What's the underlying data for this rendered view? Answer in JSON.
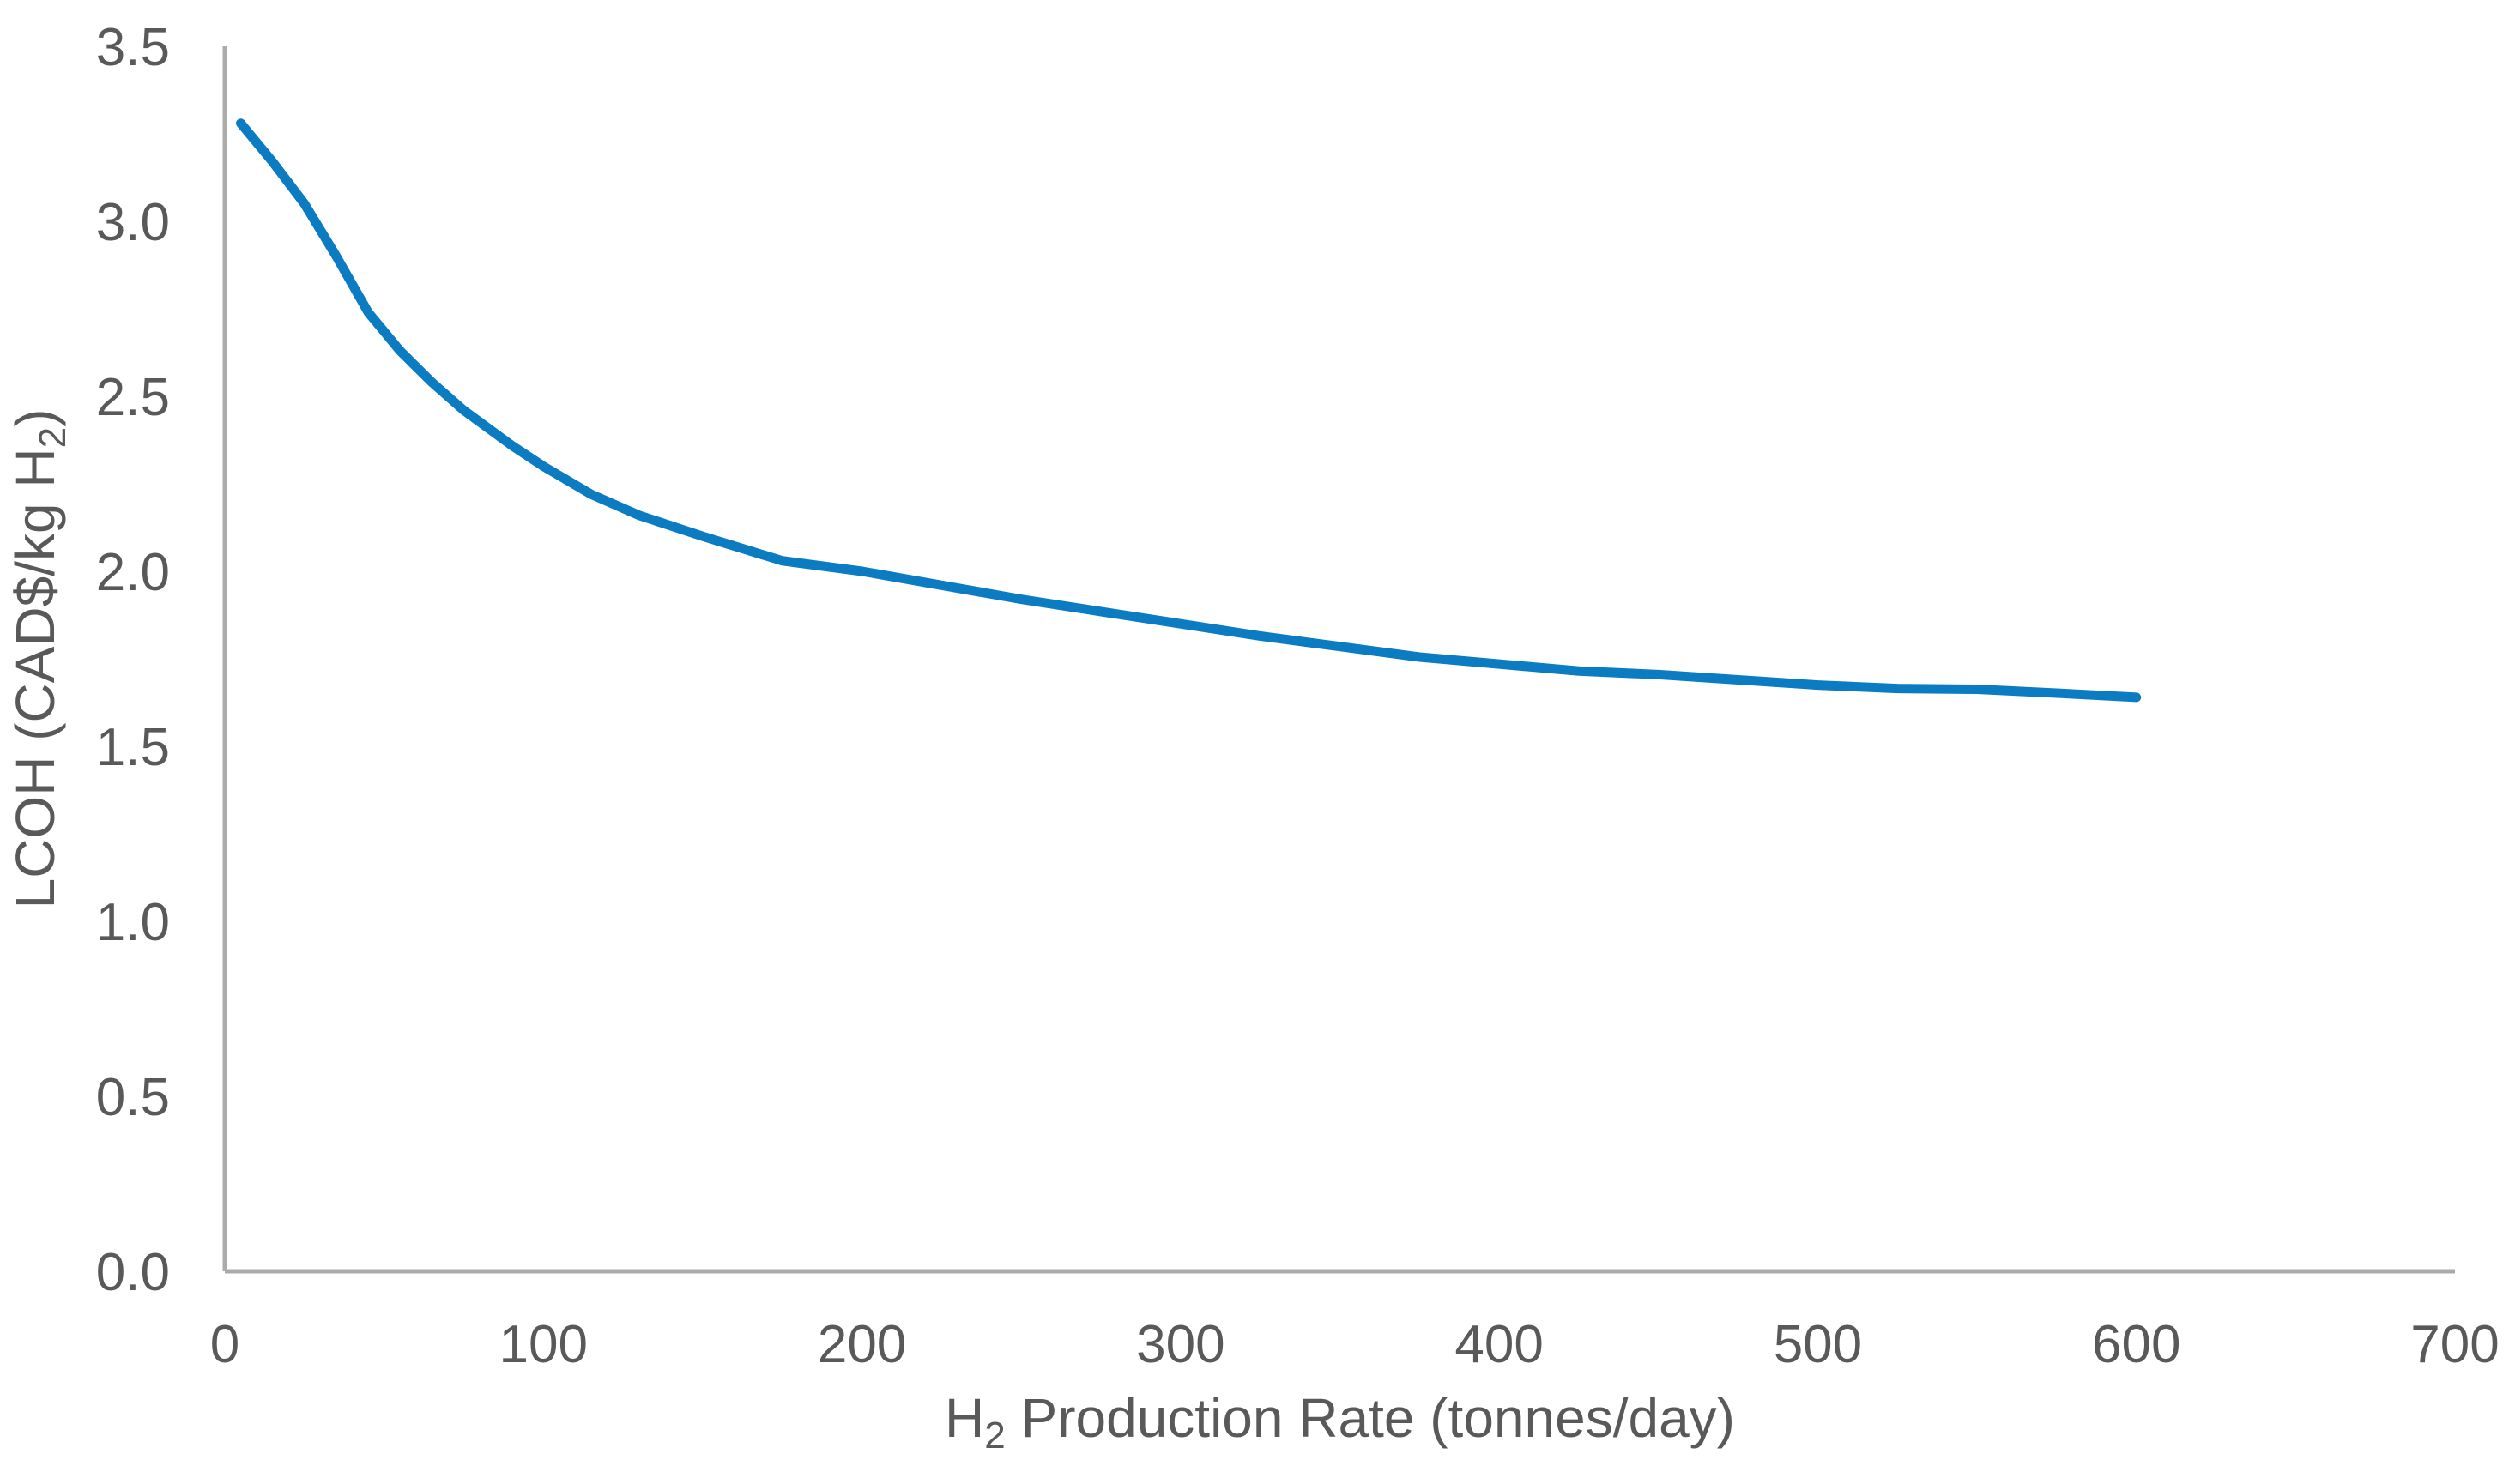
{
  "figure": {
    "background": "#ffffff",
    "description": "Line chart of levelized cost of hydrogen (LCOH) versus hydrogen production rate"
  },
  "chart_data": {
    "type": "line",
    "title": "",
    "xlabel": "H2 Production Rate (tonnes/day)",
    "xlabel_parts": [
      {
        "text": "H",
        "subscript": false
      },
      {
        "text": "2",
        "subscript": true
      },
      {
        "text": " Production Rate (tonnes/day)",
        "subscript": false
      }
    ],
    "ylabel": "LCOH (CAD$/kg H2)",
    "ylabel_parts": [
      {
        "text": "LCOH (CAD$/kg H",
        "subscript": false
      },
      {
        "text": "2",
        "subscript": true
      },
      {
        "text": ")",
        "subscript": false
      }
    ],
    "xlim": [
      0,
      700
    ],
    "ylim": [
      0,
      3.5
    ],
    "x_ticks": [
      0,
      100,
      200,
      300,
      400,
      500,
      600,
      700
    ],
    "x_tick_labels": [
      "0",
      "100",
      "200",
      "300",
      "400",
      "500",
      "600",
      "700"
    ],
    "y_ticks": [
      0,
      0.5,
      1,
      1.5,
      2,
      2.5,
      3,
      3.5
    ],
    "y_tick_labels": [
      "0.0",
      "0.5",
      "1.0",
      "1.5",
      "2.0",
      "2.5",
      "3.0",
      "3.5"
    ],
    "grid": false,
    "legend": "none",
    "series": [
      {
        "name": "LCOH",
        "color": "#0b7cc1",
        "points": [
          [
            5,
            3.28
          ],
          [
            15,
            3.17
          ],
          [
            25,
            3.05
          ],
          [
            35,
            2.9
          ],
          [
            45,
            2.74
          ],
          [
            55,
            2.63
          ],
          [
            65,
            2.54
          ],
          [
            75,
            2.46
          ],
          [
            90,
            2.36
          ],
          [
            100,
            2.3
          ],
          [
            115,
            2.22
          ],
          [
            130,
            2.16
          ],
          [
            150,
            2.1
          ],
          [
            175,
            2.03
          ],
          [
            200,
            2.0
          ],
          [
            225,
            1.96
          ],
          [
            250,
            1.92
          ],
          [
            275,
            1.885
          ],
          [
            300,
            1.85
          ],
          [
            325,
            1.815
          ],
          [
            350,
            1.785
          ],
          [
            375,
            1.755
          ],
          [
            400,
            1.735
          ],
          [
            425,
            1.715
          ],
          [
            450,
            1.705
          ],
          [
            475,
            1.69
          ],
          [
            500,
            1.675
          ],
          [
            525,
            1.665
          ],
          [
            550,
            1.663
          ],
          [
            575,
            1.652
          ],
          [
            600,
            1.64
          ]
        ]
      }
    ],
    "colors": {
      "line": "#0b7cc1",
      "axis_line": "#ababab",
      "text": "#595959",
      "background": "#ffffff"
    }
  }
}
